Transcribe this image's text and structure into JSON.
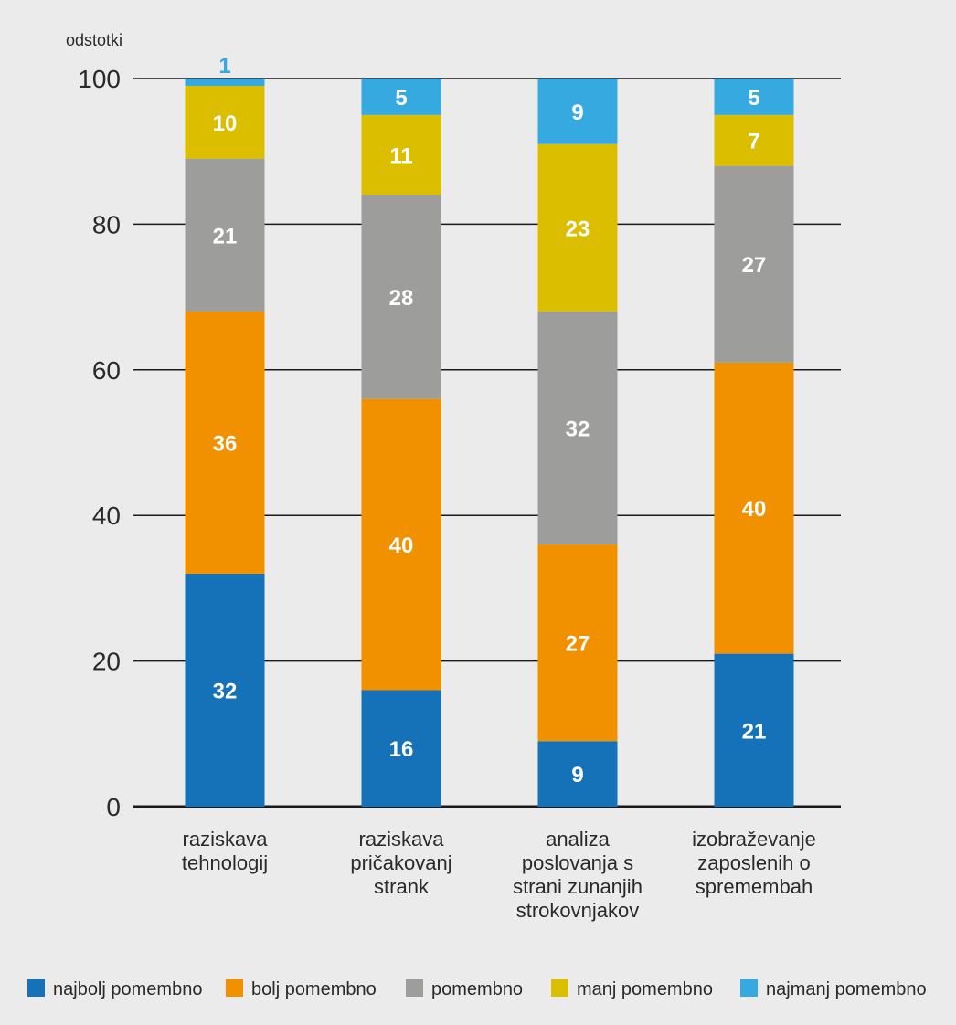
{
  "chart_data": {
    "type": "bar",
    "stacked": true,
    "y_unit_label": "odstotki",
    "ylim": [
      0,
      100
    ],
    "y_ticks": [
      0,
      20,
      40,
      60,
      80,
      100
    ],
    "grid": true,
    "legend_position": "bottom",
    "categories": [
      [
        "raziskava",
        "tehnologij"
      ],
      [
        "raziskava",
        "pričakovanj",
        "strank"
      ],
      [
        "analiza",
        "poslovanja s",
        "strani zunanjih",
        "strokovnjakov"
      ],
      [
        "izobraževanje",
        "zaposlenih o",
        "spremembah"
      ]
    ],
    "series": [
      {
        "name": "najbolj pomembno",
        "color": "#1672b8",
        "values": [
          32,
          16,
          9,
          21
        ]
      },
      {
        "name": "bolj pomembno",
        "color": "#f29100",
        "values": [
          36,
          40,
          27,
          40
        ]
      },
      {
        "name": "pomembno",
        "color": "#9d9d9c",
        "values": [
          21,
          28,
          32,
          27
        ]
      },
      {
        "name": "manj pomembno",
        "color": "#dcbe00",
        "values": [
          10,
          11,
          23,
          7
        ]
      },
      {
        "name": "najmanj pomembno",
        "color": "#36a9e1",
        "values": [
          1,
          5,
          9,
          5
        ]
      }
    ]
  }
}
